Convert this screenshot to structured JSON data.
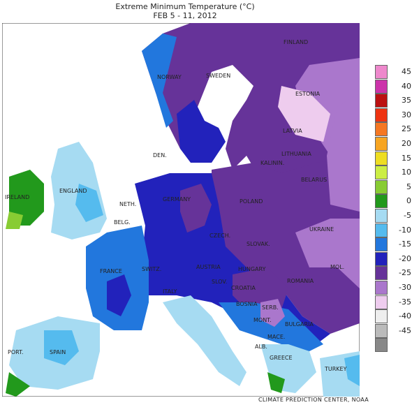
{
  "title": "Extreme Minimum Temperature (°C)",
  "subtitle": "FEB 5 - 11, 2012",
  "credit": "CLIMATE PREDICTION CENTER, NOAA",
  "legend": [
    {
      "label": "45",
      "color": "#ee88cc"
    },
    {
      "label": "40",
      "color": "#cc33aa"
    },
    {
      "label": "35",
      "color": "#bb1111"
    },
    {
      "label": "30",
      "color": "#ee3311"
    },
    {
      "label": "25",
      "color": "#f57722"
    },
    {
      "label": "20",
      "color": "#f7a522"
    },
    {
      "label": "15",
      "color": "#eedd22"
    },
    {
      "label": "10",
      "color": "#ccee44"
    },
    {
      "label": "5",
      "color": "#88cc33"
    },
    {
      "label": "0",
      "color": "#22991c"
    },
    {
      "label": "-5",
      "color": "#a6dbf2"
    },
    {
      "label": "-10",
      "color": "#55bbee"
    },
    {
      "label": "-15",
      "color": "#2277dd"
    },
    {
      "label": "-20",
      "color": "#2222bb"
    },
    {
      "label": "-25",
      "color": "#663399"
    },
    {
      "label": "-30",
      "color": "#aa77cc"
    },
    {
      "label": "-35",
      "color": "#eeccee"
    },
    {
      "label": "-40",
      "color": "#eeeeee"
    },
    {
      "label": "-45",
      "color": "#bbbbbb"
    },
    {
      "label": "",
      "color": "#888888"
    }
  ],
  "countries": {
    "finland": "FINLAND",
    "norway": "NORWAY",
    "sweden": "SWEDEN",
    "estonia": "ESTONIA",
    "latvia": "LATVIA",
    "lithuania": "LITHUANIA",
    "kalinin": "KALININ.",
    "denmark": "DEN.",
    "belarus": "BELARUS",
    "ireland": "IRELAND",
    "england": "ENGLAND",
    "neth": "NETH.",
    "germany": "GERMANY",
    "poland": "POLAND",
    "belg": "BELG.",
    "czech": "CZECH.",
    "slovak": "SLOVAK.",
    "ukraine": "UKRAINE",
    "france": "FRANCE",
    "switz": "SWITZ.",
    "austria": "AUSTRIA",
    "hungary": "HUNGARY",
    "moldova": "MOL.",
    "italy": "ITALY",
    "slov": "SLOV.",
    "croatia": "CROATIA",
    "romania": "ROMANIA",
    "bosnia": "BOSNIA",
    "serb": "SERB.",
    "mont": "MONT.",
    "bulgaria": "BULGARIA",
    "mace": "MACE.",
    "alb": "ALB.",
    "greece": "GREECE",
    "turkey": "TURKEY",
    "port": "PORT.",
    "spain": "SPAIN"
  }
}
